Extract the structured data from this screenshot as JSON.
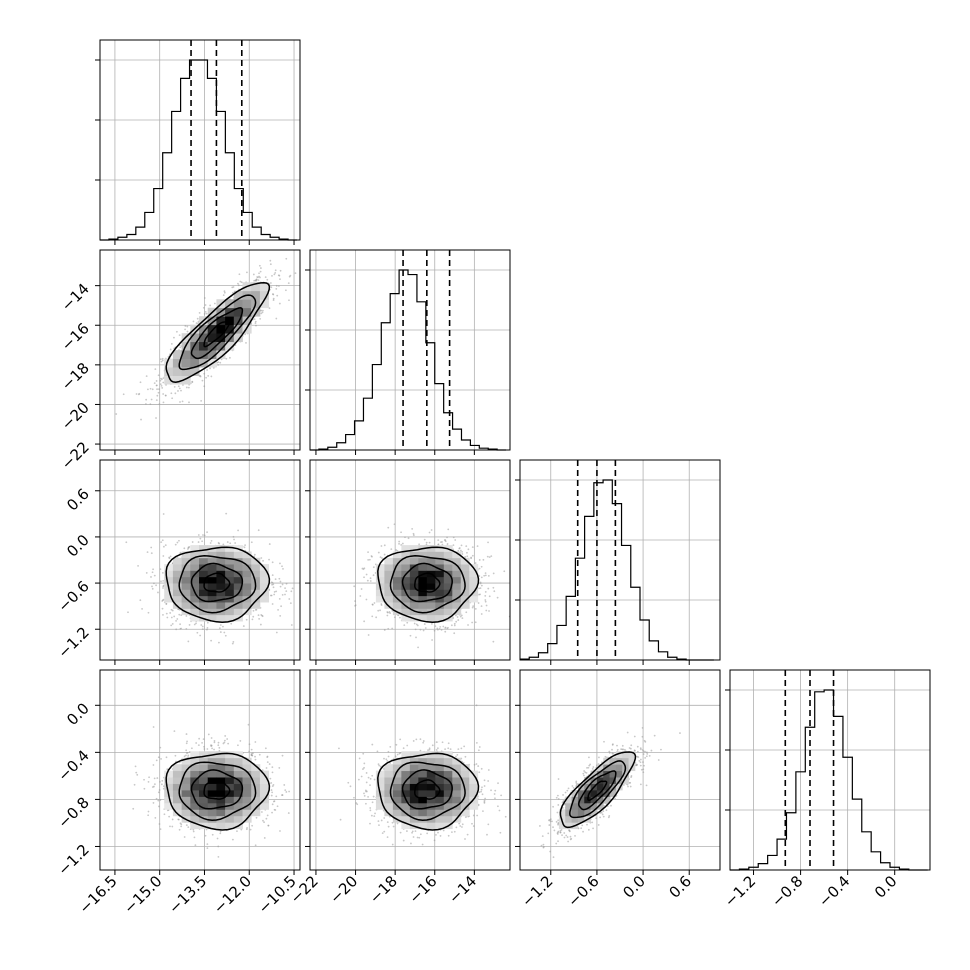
{
  "chart_data": {
    "type": "corner",
    "title": "",
    "grid": true,
    "colors": {
      "line": "#000000",
      "grid": "#b0b0b0",
      "density_dark": "#000000",
      "density_light": "#ffffff",
      "scatter": "#9a9a9a"
    },
    "parameters": [
      {
        "index": 0,
        "range": [
          -17.0,
          -10.3
        ],
        "ticks": [
          -16.5,
          -15.0,
          -13.5,
          -12.0,
          -10.5
        ],
        "tick_labels": [
          "−16.5",
          "−15.0",
          "−13.5",
          "−12.0",
          "−10.5"
        ],
        "mean": -13.1,
        "sigma": 0.85,
        "quantiles": [
          -13.95,
          -13.1,
          -12.25
        ]
      },
      {
        "index": 1,
        "range": [
          -22.3,
          -12.2
        ],
        "ticks": [
          -22,
          -20,
          -18,
          -16,
          -14
        ],
        "tick_labels": [
          "−22",
          "−20",
          "−18",
          "−16",
          "−14"
        ],
        "mean": -16.4,
        "sigma": 1.25,
        "quantiles": [
          -17.6,
          -16.4,
          -15.25
        ]
      },
      {
        "index": 2,
        "range": [
          -1.6,
          1.0
        ],
        "ticks": [
          -1.2,
          -0.6,
          0.0,
          0.6
        ],
        "tick_labels": [
          "−1.2",
          "−0.6",
          "0.0",
          "0.6"
        ],
        "mean": -0.6,
        "sigma": 0.24,
        "quantiles": [
          -0.85,
          -0.6,
          -0.36
        ]
      },
      {
        "index": 3,
        "range": [
          -1.4,
          0.3
        ],
        "ticks": [
          -1.2,
          -0.8,
          -0.4,
          0.0
        ],
        "tick_labels": [
          "−1.2",
          "−0.8",
          "−0.4",
          "0.0"
        ],
        "mean": -0.72,
        "sigma": 0.16,
        "quantiles": [
          -0.93,
          -0.72,
          -0.52
        ]
      }
    ],
    "histograms": [
      {
        "parameter": 0,
        "bin_edges": [
          -17.0,
          -16.7,
          -16.4,
          -16.1,
          -15.8,
          -15.5,
          -15.2,
          -14.9,
          -14.6,
          -14.3,
          -14.0,
          -13.7,
          -13.4,
          -13.1,
          -12.8,
          -12.5,
          -12.2,
          -11.9,
          -11.6,
          -11.3,
          -11.0,
          -10.7,
          -10.4
        ],
        "counts": [
          0,
          1,
          3,
          6,
          14,
          30,
          56,
          95,
          140,
          176,
          196,
          196,
          176,
          140,
          95,
          56,
          30,
          14,
          6,
          3,
          1,
          0
        ]
      },
      {
        "parameter": 1,
        "bin_edges": [
          -22.3,
          -21.85,
          -21.4,
          -20.95,
          -20.5,
          -20.05,
          -19.6,
          -19.15,
          -18.7,
          -18.25,
          -17.8,
          -17.35,
          -16.9,
          -16.45,
          -16.0,
          -15.55,
          -15.1,
          -14.65,
          -14.2,
          -13.75,
          -13.3,
          -12.85,
          -12.4
        ],
        "counts": [
          0,
          1,
          3,
          8,
          17,
          32,
          57,
          94,
          140,
          172,
          198,
          193,
          163,
          118,
          73,
          41,
          23,
          11,
          5,
          2,
          1,
          0
        ]
      },
      {
        "parameter": 2,
        "bin_edges": [
          -1.6,
          -1.48,
          -1.36,
          -1.24,
          -1.12,
          -1.0,
          -0.88,
          -0.76,
          -0.64,
          -0.52,
          -0.4,
          -0.28,
          -0.16,
          -0.04,
          0.08,
          0.2,
          0.32,
          0.44,
          0.56,
          0.68,
          0.8,
          0.92
        ],
        "counts": [
          1,
          3,
          8,
          18,
          38,
          70,
          112,
          158,
          195,
          198,
          172,
          126,
          80,
          44,
          21,
          9,
          3,
          1,
          0,
          0,
          0
        ]
      },
      {
        "parameter": 3,
        "bin_edges": [
          -1.4,
          -1.32,
          -1.24,
          -1.16,
          -1.08,
          -1.0,
          -0.92,
          -0.84,
          -0.76,
          -0.68,
          -0.6,
          -0.52,
          -0.44,
          -0.36,
          -0.28,
          -0.2,
          -0.12,
          -0.04,
          0.04,
          0.12,
          0.2,
          0.28
        ],
        "counts": [
          0,
          1,
          3,
          7,
          16,
          34,
          63,
          108,
          157,
          196,
          198,
          169,
          124,
          78,
          42,
          20,
          8,
          3,
          1,
          0,
          0
        ]
      }
    ],
    "pairs": [
      {
        "x": 0,
        "y": 1,
        "rho": 0.85
      },
      {
        "x": 0,
        "y": 2,
        "rho": 0.0
      },
      {
        "x": 1,
        "y": 2,
        "rho": 0.0
      },
      {
        "x": 0,
        "y": 3,
        "rho": 0.0
      },
      {
        "x": 1,
        "y": 3,
        "rho": 0.0
      },
      {
        "x": 2,
        "y": 3,
        "rho": 0.8
      }
    ],
    "contour_levels_sigma": [
      0.5,
      1.0,
      1.5,
      2.0
    ]
  }
}
